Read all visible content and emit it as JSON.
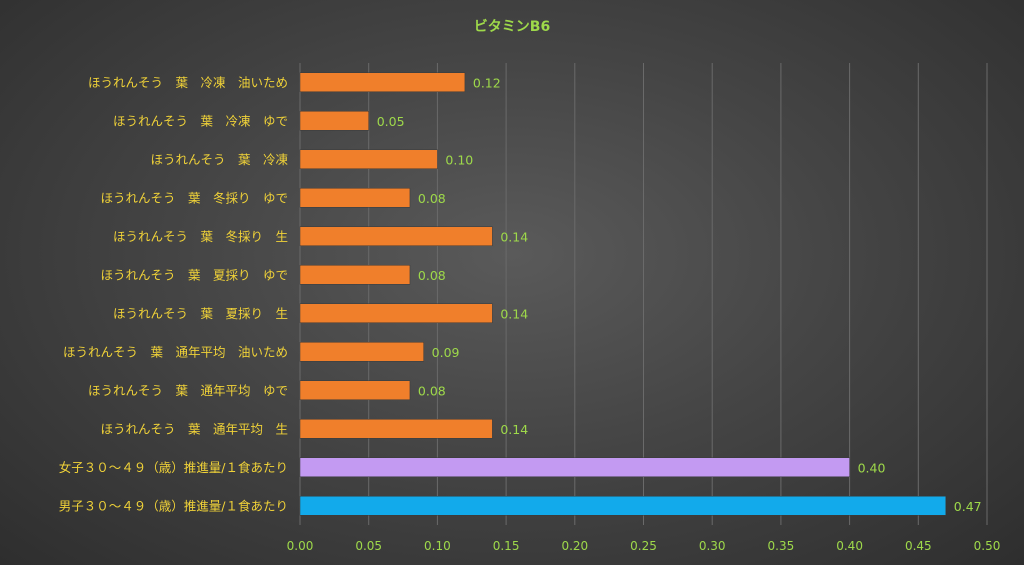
{
  "chart_data": {
    "type": "bar",
    "orientation": "horizontal",
    "title": "ビタミンB6",
    "xlabel": "",
    "ylabel": "",
    "xlim": [
      0,
      0.5
    ],
    "x_ticks": [
      "0.00",
      "0.05",
      "0.10",
      "0.15",
      "0.20",
      "0.25",
      "0.30",
      "0.35",
      "0.40",
      "0.45",
      "0.50"
    ],
    "grid": true,
    "legend": "none",
    "categories": [
      "ほうれんそう　葉　冷凍　油いため",
      "ほうれんそう　葉　冷凍　ゆで",
      "ほうれんそう　葉　冷凍",
      "ほうれんそう　葉　冬採り　ゆで",
      "ほうれんそう　葉　冬採り　生",
      "ほうれんそう　葉　夏採り　ゆで",
      "ほうれんそう　葉　夏採り　生",
      "ほうれんそう　葉　通年平均　油いため",
      "ほうれんそう　葉　通年平均　ゆで",
      "ほうれんそう　葉　通年平均　生",
      "女子３０～４９（歳）推進量/１食あたり",
      "男子３０～４９（歳）推進量/１食あたり"
    ],
    "values": [
      0.12,
      0.05,
      0.1,
      0.08,
      0.14,
      0.08,
      0.14,
      0.09,
      0.08,
      0.14,
      0.4,
      0.47
    ],
    "value_labels": [
      "0.12",
      "0.05",
      "0.10",
      "0.08",
      "0.14",
      "0.08",
      "0.14",
      "0.09",
      "0.08",
      "0.14",
      "0.40",
      "0.47"
    ],
    "bar_colors": [
      "#f07f2b",
      "#f07f2b",
      "#f07f2b",
      "#f07f2b",
      "#f07f2b",
      "#f07f2b",
      "#f07f2b",
      "#f07f2b",
      "#f07f2b",
      "#f07f2b",
      "#c39af2",
      "#12aaeb"
    ],
    "colors": {
      "title": "#9ed94a",
      "category_label": "#f0d238",
      "tick_label": "#9ed94a",
      "value_label": "#9ed94a",
      "grid": "#6a6a6a"
    }
  }
}
